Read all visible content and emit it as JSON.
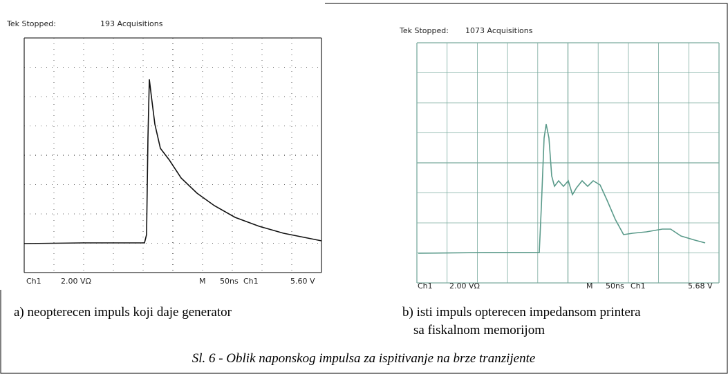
{
  "panels": [
    {
      "status": "Tek Stopped:",
      "acquisitions": "193 Acquisitions",
      "channel": "Ch1",
      "scale": "2.00 VΩ",
      "timebase_label": "M",
      "timebase": "50ns",
      "trigger_channel": "Ch1",
      "trigger_level": "5.60 V",
      "caption": [
        "a) neopterecen impuls koji daje generator"
      ]
    },
    {
      "status": "Tek Stopped:",
      "acquisitions": "1073 Acquisitions",
      "channel": "Ch1",
      "scale": "2.00 VΩ",
      "timebase_label": "M",
      "timebase": "50ns",
      "trigger_channel": "Ch1",
      "trigger_level": "5.68 V",
      "caption": [
        "b) isti impuls opterecen impedansom printera",
        "sa fiskalnom memorijom"
      ]
    }
  ],
  "figure_caption": "Sl. 6 - Oblik naponskog impulsa za ispitivanje na brze tranzijente"
}
